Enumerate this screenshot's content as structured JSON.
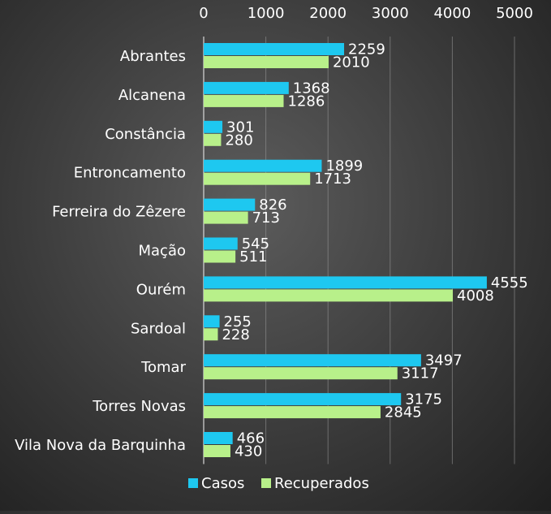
{
  "chart_data": {
    "type": "bar",
    "orientation": "horizontal",
    "categories": [
      "Abrantes",
      "Alcanena",
      "Constância",
      "Entroncamento",
      "Ferreira do Zêzere",
      "Mação",
      "Ourém",
      "Sardoal",
      "Tomar",
      "Torres Novas",
      "Vila Nova da Barquinha"
    ],
    "series": [
      {
        "name": "Casos",
        "color": "#1ec8f0",
        "values": [
          2259,
          1368,
          301,
          1899,
          826,
          545,
          4555,
          255,
          3497,
          3175,
          466
        ]
      },
      {
        "name": "Recuperados",
        "color": "#b8f08a",
        "values": [
          2010,
          1286,
          280,
          1713,
          713,
          511,
          4008,
          228,
          3117,
          2845,
          430
        ]
      }
    ],
    "xlim": [
      0,
      5000
    ],
    "xticks": [
      "0",
      "1000",
      "2000",
      "3000",
      "4000",
      "5000"
    ],
    "x_axis_position": "top",
    "grid": true,
    "legend_position": "bottom"
  }
}
